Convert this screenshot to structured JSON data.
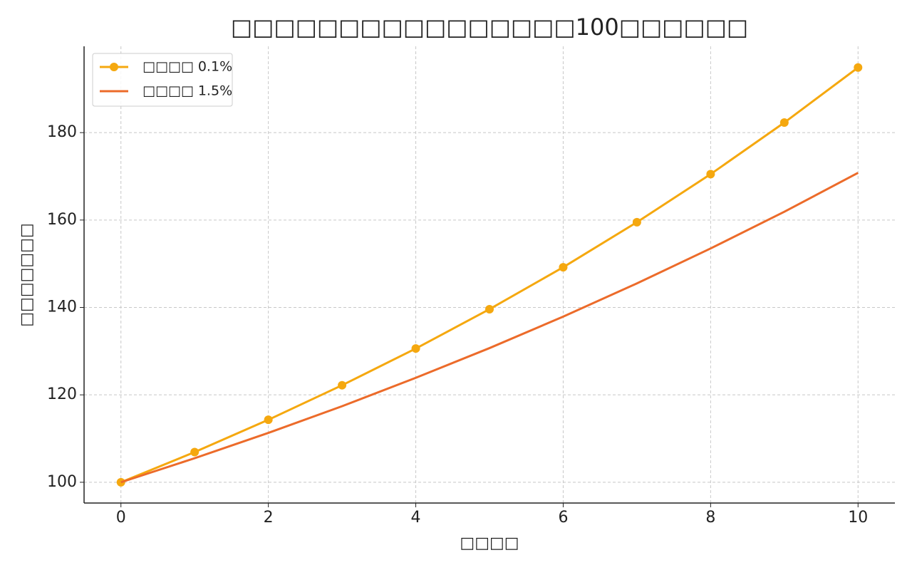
{
  "chart_data": {
    "type": "line",
    "title": "□□□□□□□□□□□□□□□□100□□□□□□",
    "x_label": "□□□□",
    "y_label": "□□□□□□□",
    "x": [
      0,
      1,
      2,
      3,
      4,
      5,
      6,
      7,
      8,
      9,
      10
    ],
    "series": [
      {
        "name": "□□□□ 0.1%",
        "color": "#f5a80f",
        "marker": true,
        "values": [
          100,
          106.9,
          114.3,
          122.2,
          130.6,
          139.6,
          149.2,
          159.5,
          170.5,
          182.3,
          194.9
        ]
      },
      {
        "name": "□□□□ 1.5%",
        "color": "#ec6b2a",
        "marker": false,
        "values": [
          100,
          105.5,
          111.3,
          117.4,
          123.9,
          130.7,
          137.9,
          145.5,
          153.5,
          161.9,
          170.8
        ]
      }
    ],
    "xlim": [
      -0.5,
      10.5
    ],
    "xticks": [
      0,
      2,
      4,
      6,
      8,
      10
    ],
    "ylim": [
      95.25,
      199.75
    ],
    "yticks": [
      100,
      120,
      140,
      160,
      180
    ],
    "grid": true,
    "legend": "upper left"
  }
}
